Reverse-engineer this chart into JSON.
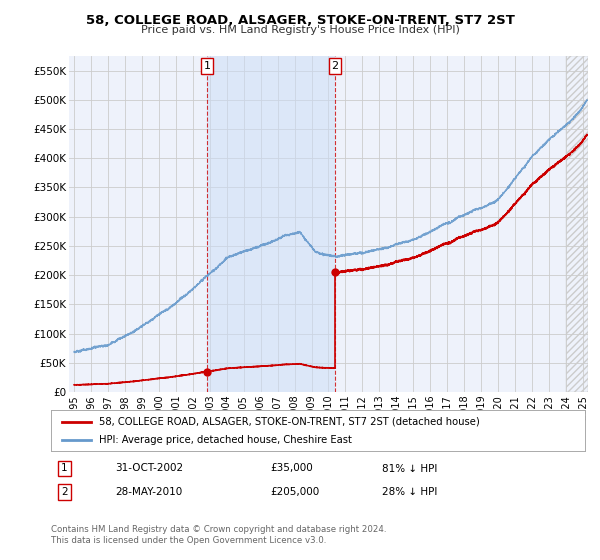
{
  "title": "58, COLLEGE ROAD, ALSAGER, STOKE-ON-TRENT, ST7 2ST",
  "subtitle": "Price paid vs. HM Land Registry's House Price Index (HPI)",
  "legend_line1": "58, COLLEGE ROAD, ALSAGER, STOKE-ON-TRENT, ST7 2ST (detached house)",
  "legend_line2": "HPI: Average price, detached house, Cheshire East",
  "footnote": "Contains HM Land Registry data © Crown copyright and database right 2024.\nThis data is licensed under the Open Government Licence v3.0.",
  "price_color": "#cc0000",
  "hpi_color": "#6699cc",
  "hpi_fill_color": "#ddeeff",
  "ylim": [
    0,
    575000
  ],
  "yticks": [
    0,
    50000,
    100000,
    150000,
    200000,
    250000,
    300000,
    350000,
    400000,
    450000,
    500000,
    550000
  ],
  "sale1_year": 2002.83,
  "sale1_price": 35000,
  "sale2_year": 2010.38,
  "sale2_price": 205000,
  "background_color": "#eef2fb",
  "plot_bg": "#ffffff",
  "xmin": 1994.7,
  "xmax": 2025.3
}
